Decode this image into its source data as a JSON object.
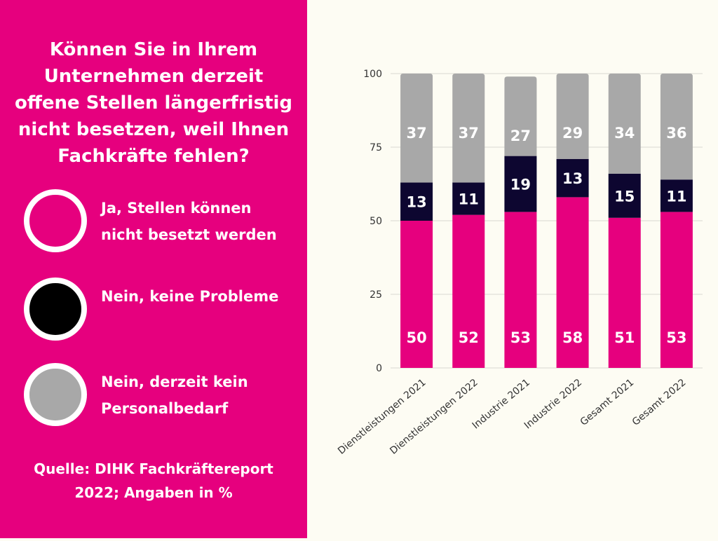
{
  "question": "Können Sie in Ihrem Unternehmen derzeit offene Stellen längerfristig nicht besetzen, weil Ihnen Fachkräfte fehlen?",
  "legend": [
    {
      "label": "Ja, Stellen können nicht besetzt werden",
      "color": "#e6007e"
    },
    {
      "label": "Nein, keine Probleme",
      "color": "#000000"
    },
    {
      "label": "Nein, derzeit kein Personalbedarf",
      "color": "#a8a8a8"
    }
  ],
  "source": "Quelle: DIHK Fachkräftereport 2022; Angaben in %",
  "chart_data": {
    "type": "bar",
    "stacked": true,
    "categories": [
      "Dienstleistungen 2021",
      "Dienstleistungen 2022",
      "Industrie 2021",
      "Industrie 2022",
      "Gesamt 2021",
      "Gesamt 2022"
    ],
    "series": [
      {
        "name": "Ja, Stellen können nicht besetzt werden",
        "color": "#e6007e",
        "values": [
          50,
          52,
          53,
          58,
          51,
          53
        ]
      },
      {
        "name": "Nein, keine Probleme",
        "color": "#0d0630",
        "values": [
          13,
          11,
          19,
          13,
          15,
          11
        ]
      },
      {
        "name": "Nein, derzeit kein Personalbedarf",
        "color": "#a8a8a8",
        "values": [
          37,
          37,
          27,
          29,
          34,
          36
        ]
      }
    ],
    "yticks": [
      0,
      25,
      50,
      75,
      100
    ],
    "ylim": [
      0,
      100
    ],
    "grid": true,
    "title": "",
    "xlabel": "",
    "ylabel": ""
  }
}
